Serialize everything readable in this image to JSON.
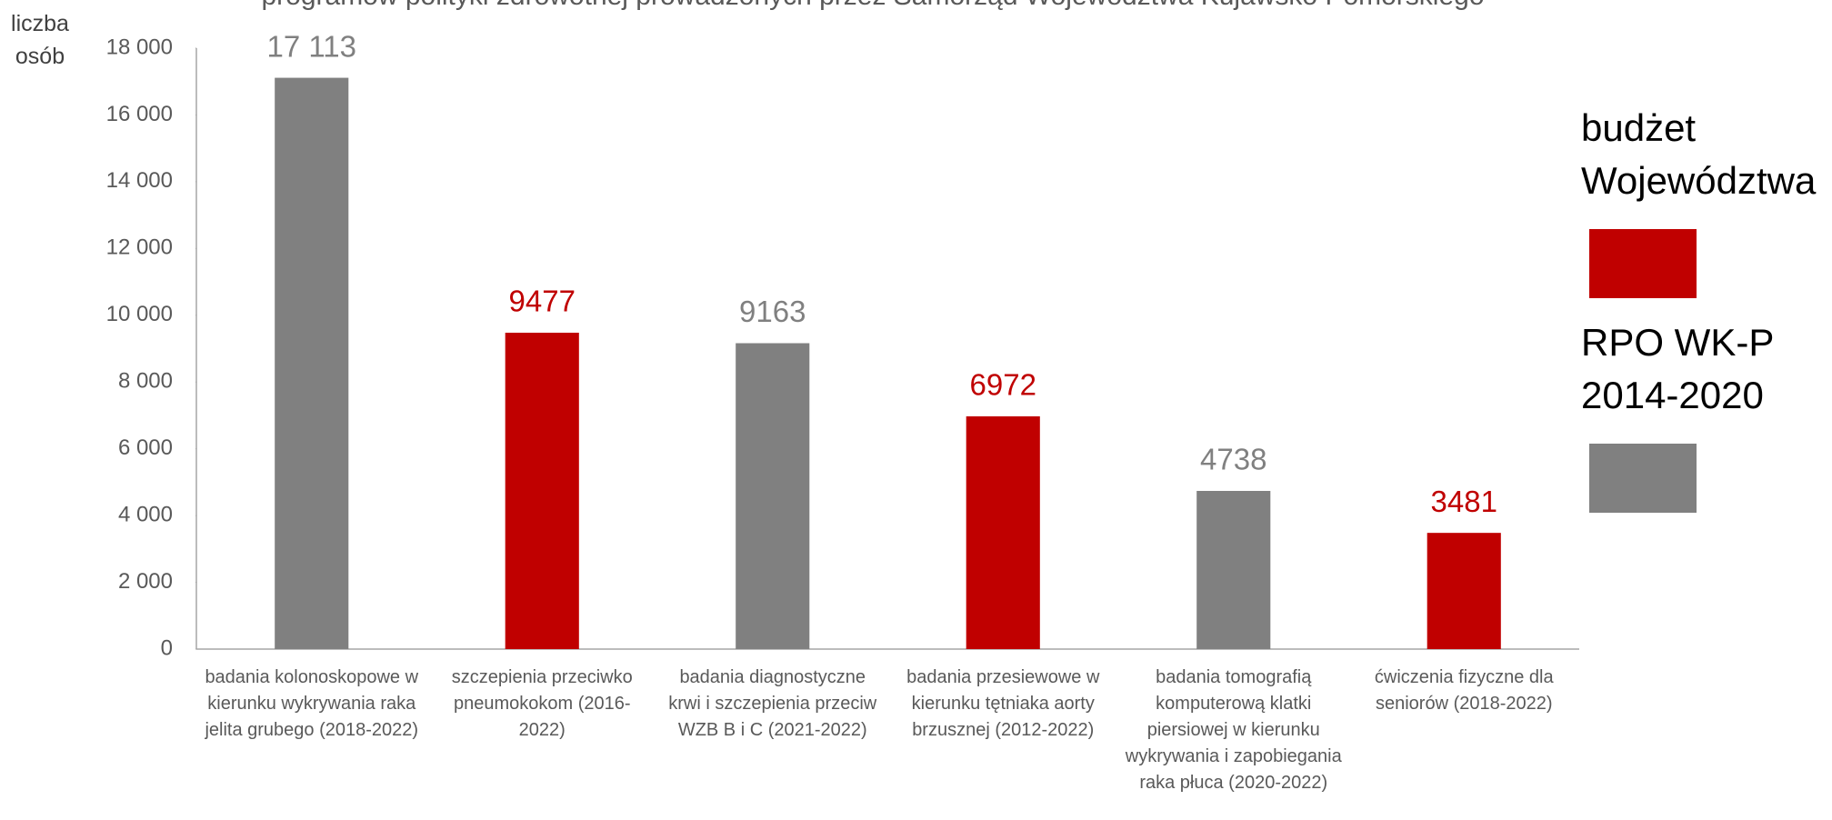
{
  "chart_data": {
    "type": "bar",
    "title": "programów polityki zdrowotnej prowadzonych przez Samorząd Województwa Kujawsko Pomorskiego",
    "y_label": "liczba osób",
    "categories": [
      "badania kolonoskopowe w kierunku wykrywania raka jelita grubego (2018-2022)",
      "szczepienia przeciwko pneumokokom (2016-2022)",
      "badania diagnostyczne krwi i szczepienia przeciw WZB B i C (2021-2022)",
      "badania przesiewowe w kierunku tętniaka aorty brzusznej (2012-2022)",
      "badania tomografią komputerową klatki piersiowej w kierunku wykrywania i zapobiegania raka płuca (2020-2022)",
      "ćwiczenia fizyczne dla seniorów (2018-2022)"
    ],
    "series": [
      {
        "name": "budżet Województwa",
        "color": "#c00000",
        "values": [
          null,
          9477,
          null,
          6972,
          null,
          3481
        ]
      },
      {
        "name": "RPO WK-P 2014-2020",
        "color": "#808080",
        "values": [
          17113,
          null,
          9163,
          null,
          4738,
          null
        ],
        "value_labels": [
          "17 113",
          null,
          "9163",
          null,
          "4738",
          null
        ]
      }
    ],
    "ylim": [
      0,
      18000
    ],
    "yticks": [
      0,
      {
        "value": 2000,
        "label": "2 000"
      },
      {
        "value": 4000,
        "label": "4 000"
      },
      {
        "value": 6000,
        "label": "6 000"
      },
      {
        "value": 8000,
        "label": "8 000"
      },
      {
        "value": 10000,
        "label": "10 000"
      },
      {
        "value": 12000,
        "label": "12 000"
      },
      {
        "value": 14000,
        "label": "14 000"
      },
      {
        "value": 16000,
        "label": "16 000"
      },
      {
        "value": 18000,
        "label": "18 000"
      }
    ],
    "legend_position": "right"
  }
}
